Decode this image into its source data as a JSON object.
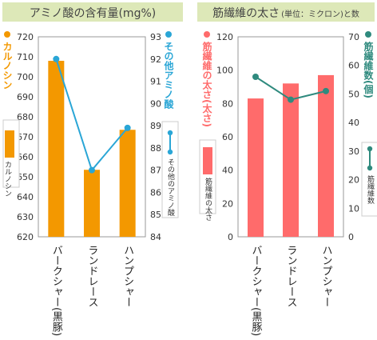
{
  "chart_data": [
    {
      "type": "bar",
      "title": "アミノ酸の含有量(mg%)",
      "categories": [
        "バークシャー(黒豚)",
        "ランドレース",
        "ハンプシャー"
      ],
      "left_axis": {
        "label": "カルノシン",
        "ylim": [
          620,
          720
        ],
        "ticks": [
          620,
          630,
          640,
          650,
          660,
          670,
          680,
          690,
          700,
          710,
          720
        ]
      },
      "right_axis": {
        "label": "その他アミノ酸",
        "ylim": [
          84,
          93
        ],
        "ticks": [
          84,
          85,
          86,
          87,
          88,
          89,
          90,
          91,
          92,
          93
        ]
      },
      "series": [
        {
          "name": "カルノシン",
          "kind": "bar",
          "axis": "left",
          "color": "#f39800",
          "values": [
            708,
            653.5,
            673.5
          ]
        },
        {
          "name": "その他アミノ酸",
          "kind": "line",
          "axis": "right",
          "color": "#2aa6d6",
          "values": [
            92,
            87,
            88.9
          ]
        }
      ],
      "legend": [
        "カルノシン",
        "その他のアミノ酸"
      ],
      "legend_placement": "inside-left-and-right"
    },
    {
      "type": "bar",
      "title": "筋繊維の太さ",
      "title_unit": "(単位：ミクロン)と数",
      "categories": [
        "バークシャー(黒豚)",
        "ランドレース",
        "ハンプシャー"
      ],
      "left_axis": {
        "label": "筋繊維の太さ(太さ)",
        "ylim": [
          0,
          120
        ],
        "ticks": [
          0,
          20,
          40,
          60,
          80,
          100,
          120
        ]
      },
      "right_axis": {
        "label": "筋繊維数(個)",
        "ylim": [
          0,
          70
        ],
        "ticks": [
          0,
          10,
          20,
          30,
          40,
          50,
          60,
          70
        ]
      },
      "series": [
        {
          "name": "筋繊維の太さ",
          "kind": "bar",
          "axis": "left",
          "color": "#ff6b6b",
          "values": [
            83,
            92,
            97
          ]
        },
        {
          "name": "筋繊維数",
          "kind": "line",
          "axis": "right",
          "color": "#2f8a7e",
          "values": [
            56,
            48,
            51
          ]
        }
      ],
      "legend": [
        "筋繊維の太さ",
        "筋繊維数"
      ],
      "legend_placement": "inside-left-and-right"
    }
  ]
}
